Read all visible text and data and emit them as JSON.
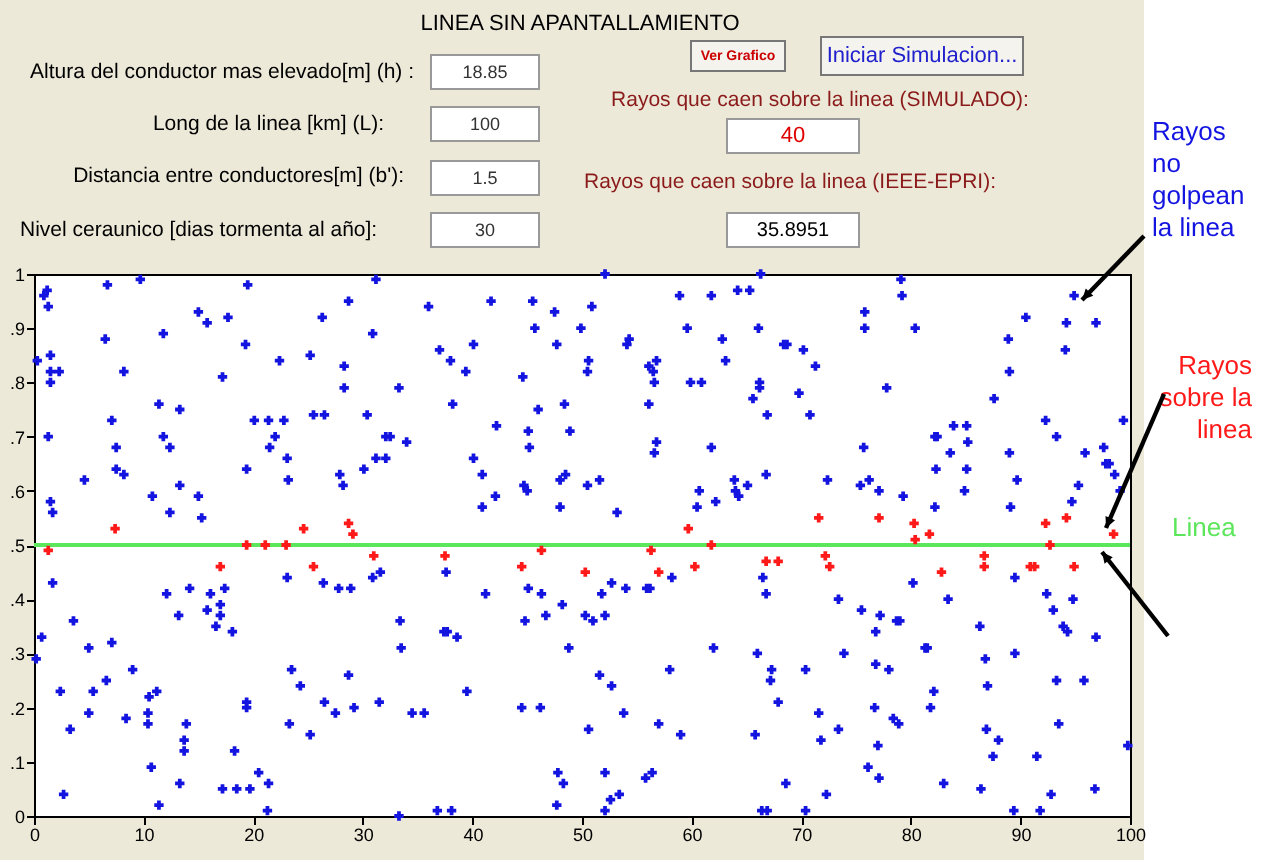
{
  "chart_data": {
    "type": "scatter",
    "title": "LINEA SIN APANTALLAMIENTO",
    "annotations": [
      "Altura del conductor mas elevado[m] (h) :",
      "18.85",
      "Long de la linea [km] (L):",
      "100",
      "Distancia entre conductores[m] (b'):",
      "1.5",
      "Nivel ceraunico [dias tormenta al año]:",
      "30",
      "Ver Grafico",
      "Iniciar Simulacion...",
      "Rayos que caen sobre la linea (SIMULADO):",
      "40",
      "Rayos que caen sobre la linea (IEEE-EPRI):",
      "35.8951"
    ],
    "xlim": [
      0,
      100
    ],
    "xticks": [
      0,
      10,
      20,
      30,
      40,
      50,
      60,
      70,
      80,
      90,
      100
    ],
    "ylim": [
      0,
      1
    ],
    "yticks": [
      0,
      {
        "value": 0.1,
        "label": ".1"
      },
      {
        "value": 0.2,
        "label": ".2"
      },
      {
        "value": 0.3,
        "label": ".3"
      },
      {
        "value": 0.4,
        "label": ".4"
      },
      {
        "value": 0.5,
        "label": ".5"
      },
      {
        "value": 0.6,
        "label": ".6"
      },
      {
        "value": 0.7,
        "label": ".7"
      },
      {
        "value": 0.8,
        "label": ".8"
      },
      {
        "value": 0.9,
        "label": ".9"
      },
      1
    ],
    "series": [
      {
        "name": "Rayos no golpean la linea",
        "color": "#1414e0",
        "marker": "cross",
        "x": [
          0.3,
          0.9,
          1.2,
          1.3,
          1.5,
          1.5,
          1.5,
          2.3,
          1.3,
          1.5,
          1.7,
          1.7,
          0.7,
          0.2,
          2.4,
          2.7,
          3.3,
          3.6,
          4.6,
          5.0,
          5.4,
          5.0,
          6.6,
          7.1,
          6.7,
          6.5,
          7.1,
          7.5,
          7.5,
          8.2,
          8.2,
          9.7,
          11.8,
          11.4,
          11.8,
          12.4,
          13.3,
          13.3,
          10.8,
          12.4,
          8.4,
          9.0,
          10.4,
          10.5,
          11.2,
          10.4,
          10.7,
          11.4,
          12.1,
          13.2,
          13.3,
          13.7,
          13.7,
          13.9,
          14.2,
          15.0,
          15.8,
          15.0,
          15.3,
          15.8,
          16.1,
          16.6,
          17.0,
          17.0,
          17.4,
          17.2,
          17.7,
          18.1,
          18.3,
          17.2,
          18.5,
          19.3,
          19.4,
          19.5,
          19.4,
          19.4,
          19.7,
          20.1,
          20.5,
          21.4,
          21.5,
          22.0,
          22.4,
          22.8,
          23.1,
          23.2,
          23.1,
          21.4,
          21.3,
          23.5,
          23.3,
          24.3,
          25.2,
          25.5,
          26.5,
          26.3,
          26.4,
          26.5,
          25.2,
          27.5,
          27.8,
          27.9,
          28.2,
          28.3,
          28.3,
          28.7,
          28.9,
          28.7,
          29.2,
          30.1,
          30.4,
          30.9,
          31.2,
          31.2,
          30.9,
          31.6,
          31.5,
          32.1,
          32.1,
          32.5,
          36.0,
          37.0,
          38.0,
          39.4,
          40.1,
          33.3,
          38.2,
          41.7,
          42.2,
          45.5,
          45.7,
          47.5,
          47.7,
          44.6,
          46.0,
          45.1,
          45.2,
          48.4,
          48.9,
          49.9,
          50.9,
          50.6,
          50.5,
          52.1,
          54.1,
          54.3,
          34.0,
          40.1,
          40.9,
          42.1,
          40.9,
          44.7,
          45.0,
          48.0,
          48.5,
          48.0,
          50.5,
          51.6,
          53.2,
          56.1,
          56.5,
          56.8,
          56.6,
          56.1,
          56.8,
          56.6,
          58.9,
          59.6,
          59.9,
          60.9,
          61.8,
          62.8,
          63.1,
          64.2,
          65.3,
          66.1,
          66.3,
          66.2,
          66.2,
          65.6,
          66.9,
          60.7,
          60.5,
          61.8,
          62.2,
          63.9,
          64.0,
          64.3,
          65.1,
          66.8,
          37.6,
          41.2,
          45.1,
          46.3,
          46.7,
          48.2,
          44.8,
          50.3,
          51.0,
          52.1,
          51.8,
          52.7,
          54.0,
          55.9,
          56.2,
          58.2,
          33.4,
          33.5,
          37.4,
          37.7,
          38.6,
          34.5,
          35.6,
          39.5,
          44.5,
          46.2,
          48.8,
          51.6,
          52.7,
          50.6,
          53.8,
          57.0,
          58.0,
          59.0,
          62.0,
          66.0,
          67.2,
          67.9,
          65.8,
          66.5,
          66.8,
          47.8,
          48.3,
          52.1,
          53.4,
          52.6,
          52.1,
          55.8,
          56.4,
          47.7,
          36.8,
          38.1,
          33.3,
          66.4,
          66.9,
          68.4,
          68.7,
          70.2,
          71.3,
          69.8,
          70.8,
          75.8,
          75.8,
          79.1,
          79.2,
          80.4,
          77.8,
          75.7,
          72.4,
          75.4,
          76.2,
          77.1,
          79.3,
          82.2,
          82.4,
          82.3,
          83.6,
          83.9,
          85.1,
          85.2,
          85.1,
          84.9,
          82.2,
          87.6,
          89.0,
          89.7,
          89.1,
          88.9,
          89.0,
          90.5,
          94.2,
          94.9,
          96.9,
          94.1,
          92.3,
          93.3,
          95.9,
          95.3,
          94.7,
          97.6,
          97.8,
          98.1,
          98.6,
          99.4,
          99.1,
          73.4,
          75.5,
          77.2,
          76.8,
          78.7,
          79.0,
          80.2,
          83.4,
          73.9,
          76.8,
          78.0,
          81.3,
          81.5,
          86.3,
          89.5,
          92.4,
          93.0,
          93.9,
          94.3,
          94.8,
          96.9,
          67.3,
          70.4,
          71.6,
          71.8,
          73.4,
          76.7,
          77.0,
          77.1,
          76.1,
          78.4,
          78.9,
          81.8,
          82.1,
          86.8,
          87.0,
          86.9,
          88.0,
          87.5,
          89.5,
          93.3,
          95.8,
          93.5,
          91.5,
          92.8,
          89.4,
          91.8,
          86.4,
          83.0,
          96.8,
          99.8,
          72.3,
          70.4,
          68.6
        ],
        "values": [
          0.84,
          0.96,
          0.97,
          0.94,
          0.85,
          0.82,
          0.8,
          0.82,
          0.7,
          0.58,
          0.56,
          0.43,
          0.33,
          0.29,
          0.23,
          0.04,
          0.16,
          0.36,
          0.62,
          0.31,
          0.23,
          0.19,
          0.25,
          0.32,
          0.98,
          0.88,
          0.73,
          0.68,
          0.64,
          0.63,
          0.82,
          0.99,
          0.89,
          0.76,
          0.7,
          0.68,
          0.75,
          0.61,
          0.59,
          0.56,
          0.18,
          0.27,
          0.19,
          0.22,
          0.23,
          0.17,
          0.09,
          0.02,
          0.41,
          0.37,
          0.06,
          0.14,
          0.12,
          0.17,
          0.42,
          0.93,
          0.91,
          0.59,
          0.55,
          0.38,
          0.41,
          0.35,
          0.39,
          0.37,
          0.42,
          0.81,
          0.92,
          0.34,
          0.12,
          0.05,
          0.05,
          0.87,
          0.64,
          0.98,
          0.21,
          0.2,
          0.05,
          0.73,
          0.08,
          0.73,
          0.68,
          0.7,
          0.84,
          0.73,
          0.66,
          0.62,
          0.44,
          0.06,
          0.01,
          0.27,
          0.17,
          0.24,
          0.85,
          0.74,
          0.74,
          0.92,
          0.43,
          0.21,
          0.15,
          0.19,
          0.42,
          0.63,
          0.61,
          0.83,
          0.79,
          0.95,
          0.42,
          0.26,
          0.2,
          0.64,
          0.74,
          0.89,
          0.66,
          0.99,
          0.44,
          0.45,
          0.21,
          0.66,
          0.7,
          0.7,
          0.94,
          0.86,
          0.84,
          0.82,
          0.87,
          0.79,
          0.76,
          0.95,
          0.72,
          0.95,
          0.9,
          0.93,
          0.87,
          0.81,
          0.75,
          0.71,
          0.68,
          0.76,
          0.71,
          0.9,
          0.94,
          0.84,
          0.82,
          1.0,
          0.87,
          0.88,
          0.69,
          0.66,
          0.63,
          0.59,
          0.57,
          0.61,
          0.6,
          0.62,
          0.63,
          0.57,
          0.61,
          0.62,
          0.56,
          0.83,
          0.82,
          0.84,
          0.8,
          0.76,
          0.69,
          0.67,
          0.96,
          0.9,
          0.8,
          0.8,
          0.96,
          0.88,
          0.84,
          0.97,
          0.97,
          0.9,
          1.0,
          0.8,
          0.79,
          0.77,
          0.74,
          0.6,
          0.57,
          0.68,
          0.58,
          0.62,
          0.6,
          0.59,
          0.61,
          0.63,
          0.45,
          0.41,
          0.42,
          0.41,
          0.37,
          0.39,
          0.36,
          0.37,
          0.36,
          0.37,
          0.41,
          0.43,
          0.42,
          0.42,
          0.42,
          0.44,
          0.36,
          0.31,
          0.34,
          0.34,
          0.33,
          0.19,
          0.19,
          0.23,
          0.2,
          0.2,
          0.31,
          0.26,
          0.24,
          0.16,
          0.19,
          0.17,
          0.27,
          0.15,
          0.31,
          0.3,
          0.25,
          0.21,
          0.15,
          0.44,
          0.41,
          0.08,
          0.06,
          0.08,
          0.04,
          0.03,
          0.01,
          0.07,
          0.08,
          0.02,
          0.01,
          0.01,
          0.0,
          0.01,
          0.01,
          0.87,
          0.87,
          0.86,
          0.83,
          0.78,
          0.74,
          0.93,
          0.9,
          0.99,
          0.96,
          0.9,
          0.79,
          0.68,
          0.62,
          0.61,
          0.62,
          0.6,
          0.59,
          0.7,
          0.7,
          0.64,
          0.67,
          0.72,
          0.72,
          0.69,
          0.64,
          0.6,
          0.57,
          0.77,
          0.67,
          0.62,
          0.57,
          0.88,
          0.82,
          0.92,
          0.91,
          0.96,
          0.91,
          0.86,
          0.73,
          0.7,
          0.67,
          0.61,
          0.58,
          0.68,
          0.65,
          0.65,
          0.63,
          0.73,
          0.6,
          0.4,
          0.38,
          0.37,
          0.34,
          0.36,
          0.36,
          0.43,
          0.4,
          0.3,
          0.28,
          0.27,
          0.31,
          0.31,
          0.35,
          0.44,
          0.41,
          0.38,
          0.35,
          0.34,
          0.4,
          0.33,
          0.27,
          0.27,
          0.19,
          0.14,
          0.16,
          0.2,
          0.13,
          0.07,
          0.09,
          0.18,
          0.17,
          0.2,
          0.23,
          0.29,
          0.24,
          0.16,
          0.14,
          0.11,
          0.3,
          0.25,
          0.25,
          0.17,
          0.11,
          0.04,
          0.01,
          0.01,
          0.05,
          0.06,
          0.05,
          0.13,
          0.04,
          0.01,
          0.06
        ]
      },
      {
        "name": "Rayos sobre la linea",
        "color": "#ff1a1a",
        "marker": "cross",
        "x": [
          1.3,
          7.4,
          17.0,
          19.4,
          21.1,
          23.0,
          24.6,
          25.5,
          28.7,
          29.1,
          31.0,
          37.5,
          46.3,
          44.5,
          50.3,
          56.3,
          57.0,
          59.7,
          60.3,
          61.8,
          66.8,
          67.9,
          71.6,
          72.2,
          72.6,
          77.1,
          80.3,
          80.4,
          81.7,
          82.8,
          86.7,
          86.7,
          90.9,
          91.3,
          92.3,
          92.7,
          94.2,
          94.9,
          98.5
        ],
        "values": [
          0.49,
          0.53,
          0.46,
          0.5,
          0.5,
          0.5,
          0.53,
          0.46,
          0.54,
          0.52,
          0.48,
          0.48,
          0.49,
          0.46,
          0.45,
          0.49,
          0.45,
          0.53,
          0.46,
          0.5,
          0.47,
          0.47,
          0.55,
          0.48,
          0.46,
          0.55,
          0.54,
          0.51,
          0.52,
          0.45,
          0.48,
          0.46,
          0.46,
          0.46,
          0.54,
          0.5,
          0.55,
          0.46,
          0.52
        ]
      },
      {
        "name": "Linea",
        "type": "line",
        "color": "#5ce65c",
        "x": [
          0,
          100
        ],
        "values": [
          0.5,
          0.5
        ]
      }
    ]
  }
}
